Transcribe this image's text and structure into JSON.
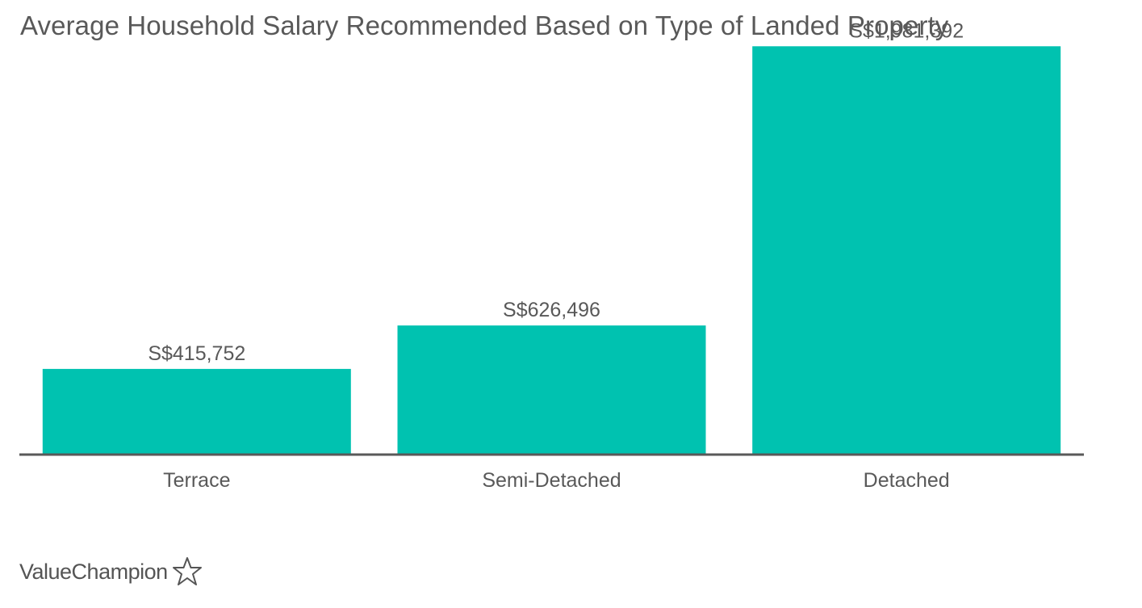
{
  "chart_data": {
    "type": "bar",
    "title": "Average Household Salary Recommended Based on Type of Landed Property",
    "xlabel": "",
    "ylabel": "",
    "categories": [
      "Terrace",
      "Semi-Detached",
      "Detached"
    ],
    "values": [
      415752,
      626496,
      1981392
    ],
    "value_labels": [
      "S$415,752",
      "S$626,496",
      "S$1,981,392"
    ],
    "ylim": [
      0,
      2100000
    ],
    "grid": false,
    "bar_color": "#00c2b0",
    "axis_color": "#595959"
  },
  "brand": {
    "name": "ValueChampion",
    "icon": "star-outline-icon"
  }
}
